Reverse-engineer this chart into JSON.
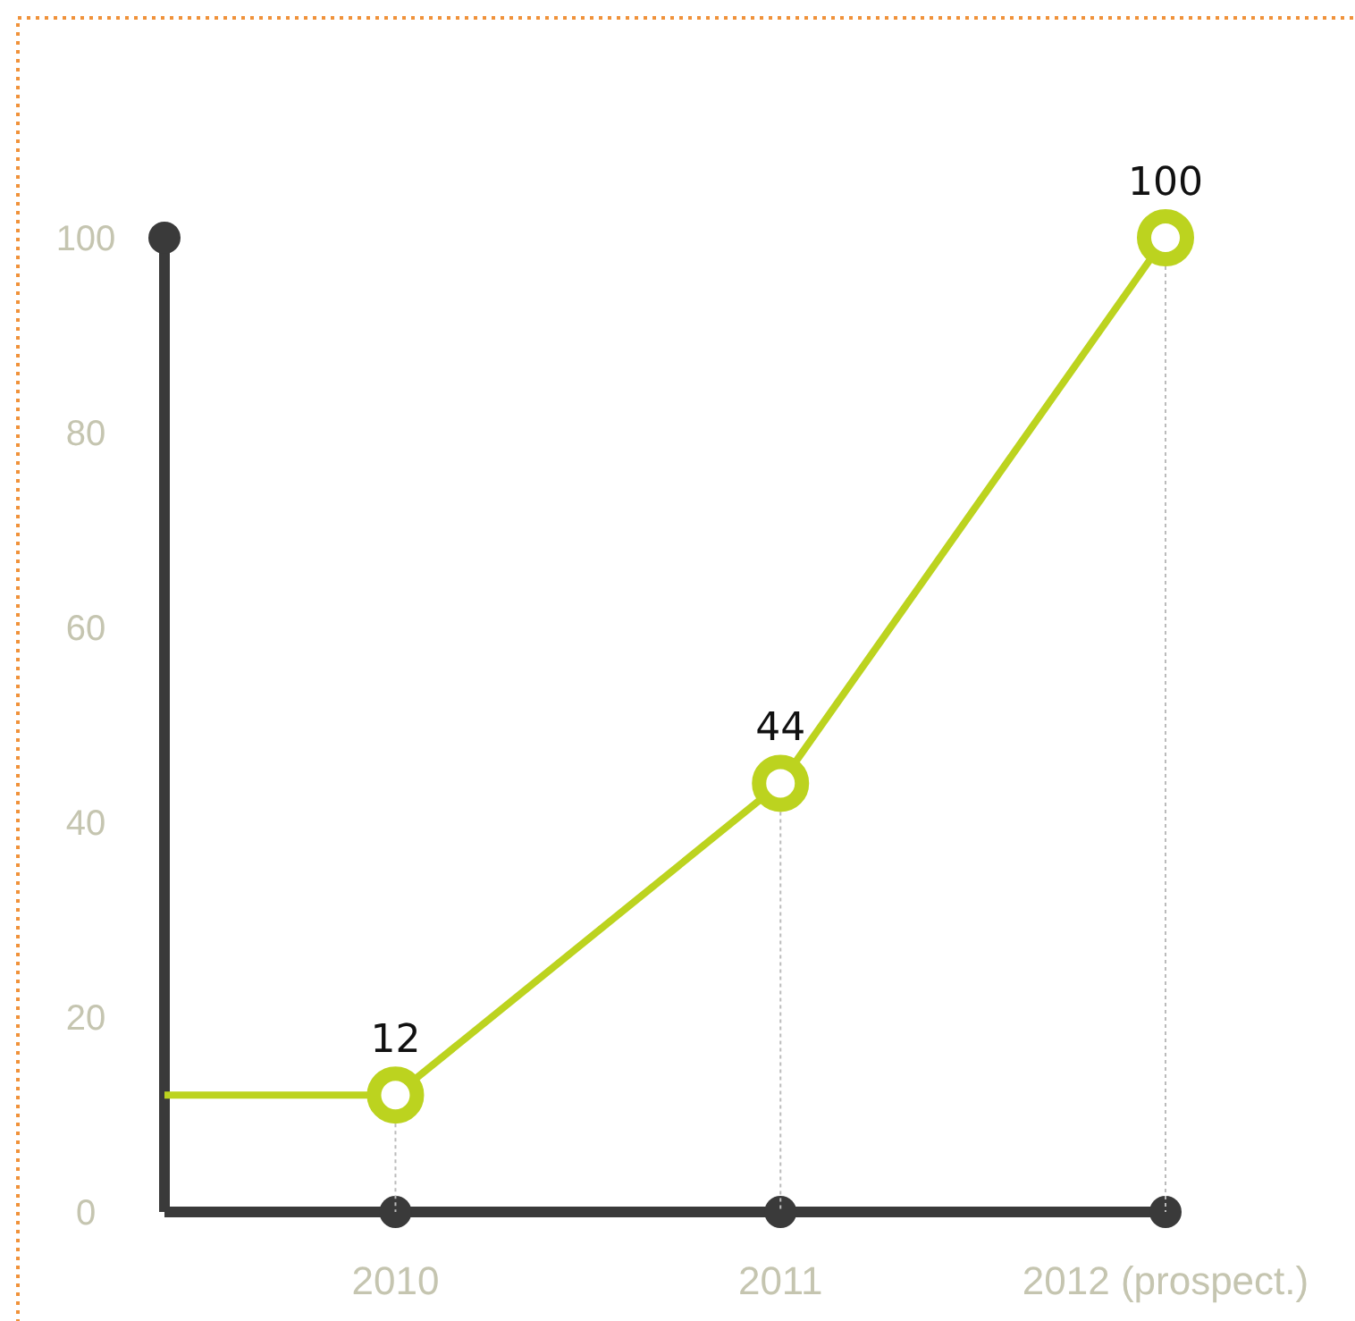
{
  "chart_data": {
    "type": "line",
    "x": [
      2009.4,
      2010,
      2011,
      2012
    ],
    "series": [
      {
        "color": "#bcd31f",
        "values": [
          12,
          12,
          44,
          100
        ],
        "value_labels": [
          null,
          "12",
          "44",
          "100"
        ]
      }
    ],
    "xlim": [
      2009.4,
      2012
    ],
    "xticks": [
      {
        "value": 2010,
        "label": "2010"
      },
      {
        "value": 2011,
        "label": "2011"
      },
      {
        "value": 2012,
        "label": "2012 (prospect.)"
      }
    ],
    "ylim": [
      0,
      100
    ],
    "yticks": [
      0,
      20,
      40,
      60,
      80,
      100
    ],
    "marker": "circle",
    "line_style": "solid"
  }
}
